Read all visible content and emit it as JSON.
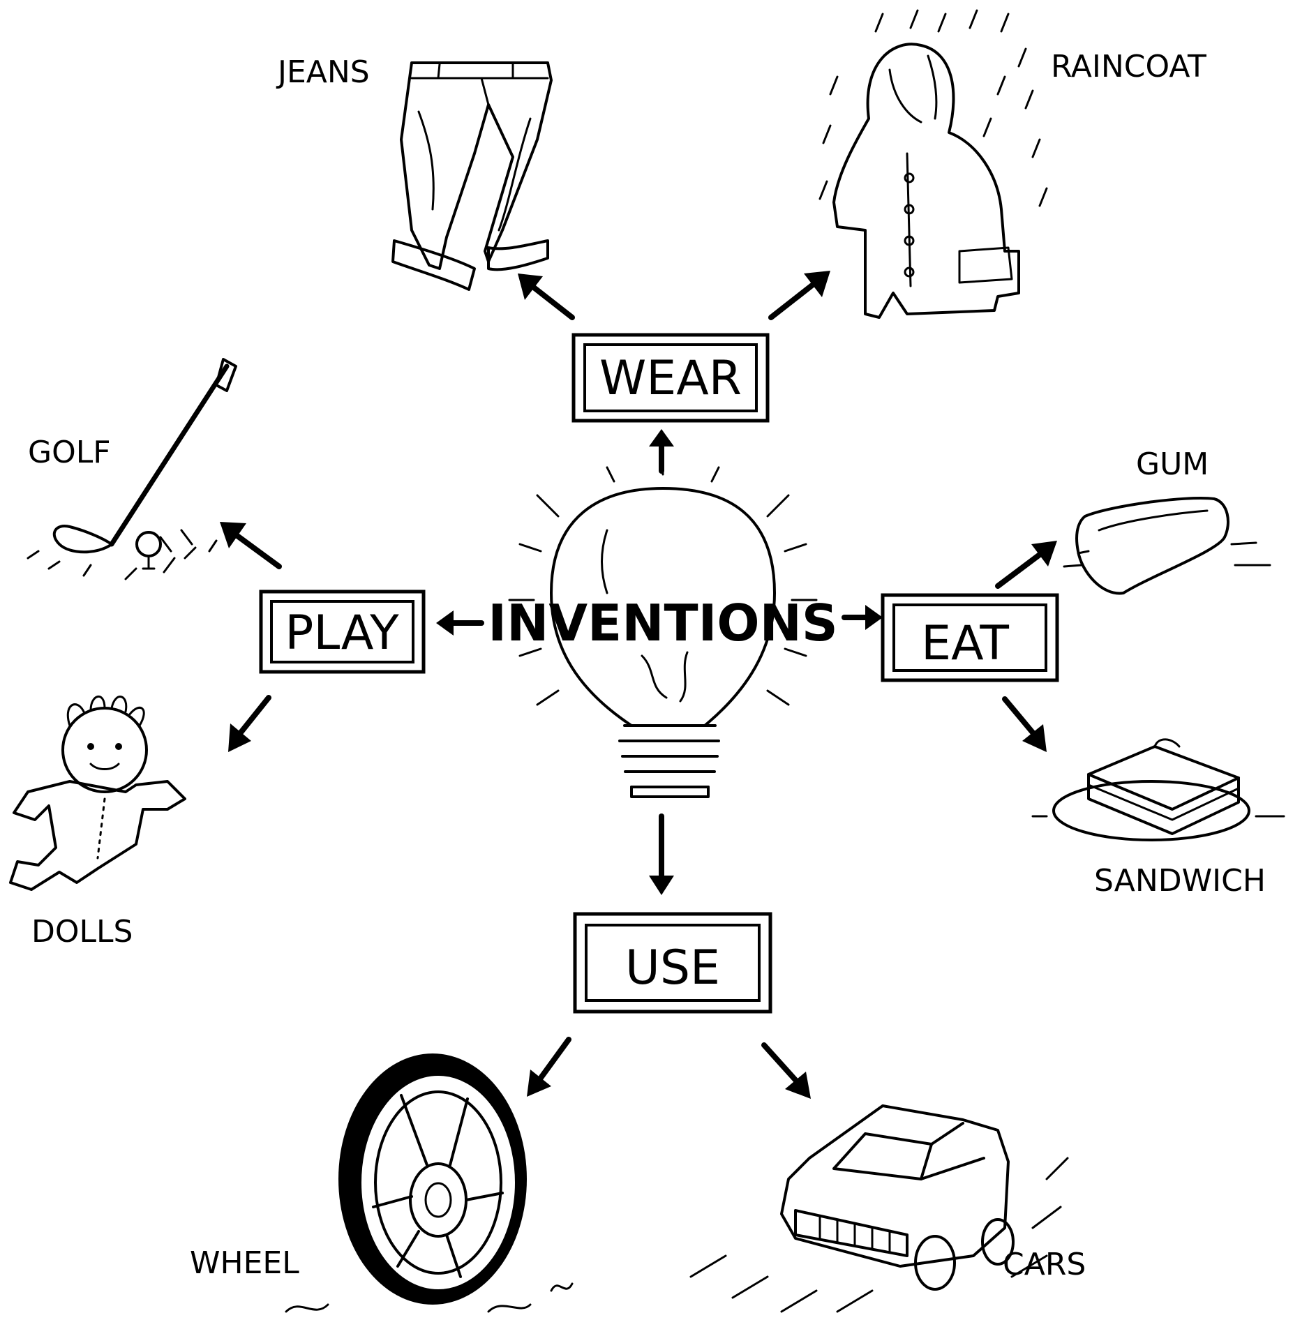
{
  "center": {
    "label": "INVENTIONS"
  },
  "categories": {
    "wear": "WEAR",
    "play": "PLAY",
    "eat": "EAT",
    "use": "USE"
  },
  "items": {
    "jeans": "JEANS",
    "raincoat": "RAINCOAT",
    "golf": "GOLF",
    "dolls": "DOLLS",
    "gum": "GUM",
    "sandwich": "SANDWICH",
    "wheel": "WHEEL",
    "cars": "CARS"
  },
  "icons": [
    "lightbulb-icon",
    "jeans-icon",
    "raincoat-icon",
    "golf-club-icon",
    "doll-icon",
    "gum-icon",
    "sandwich-icon",
    "wheel-icon",
    "car-icon"
  ]
}
